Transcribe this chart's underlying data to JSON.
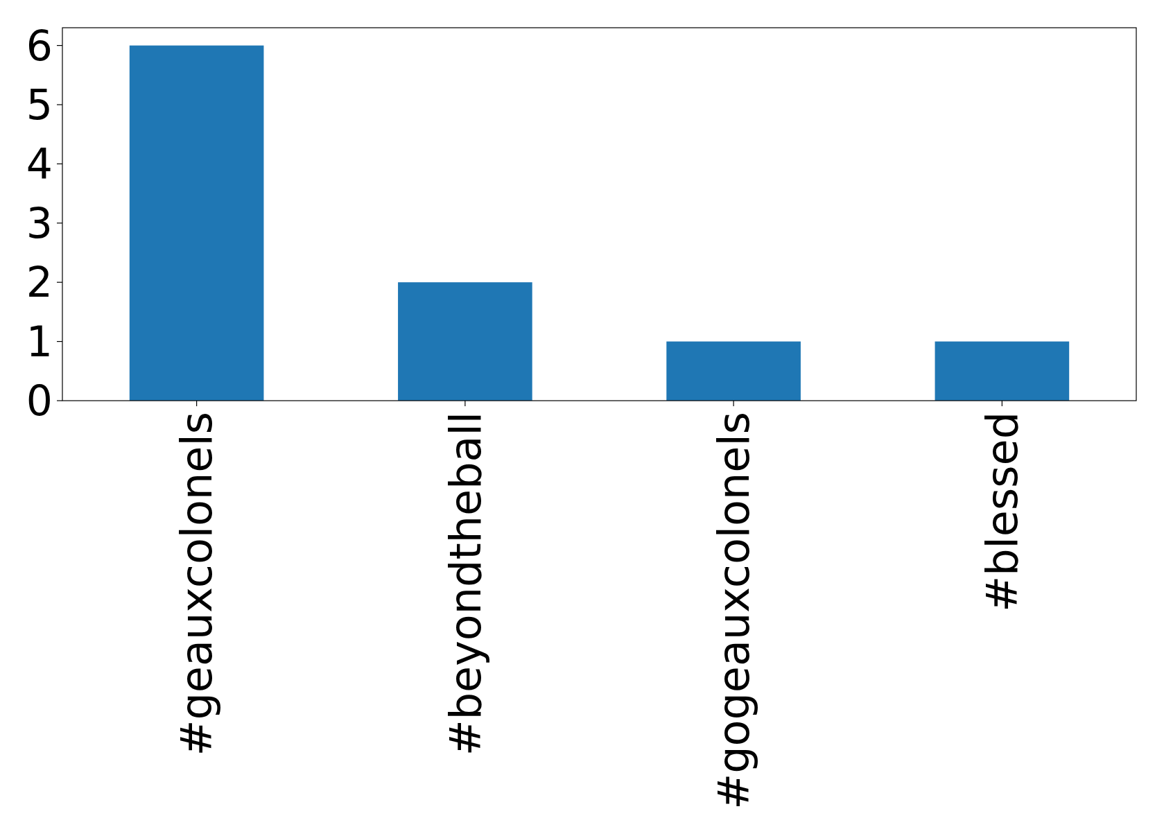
{
  "chart_data": {
    "type": "bar",
    "categories": [
      "#geauxcolonels",
      "#beyondtheball",
      "#gogeauxcolonels",
      "#blessed"
    ],
    "values": [
      6,
      2,
      1,
      1
    ],
    "color": "#1f77b4",
    "ylim": [
      0,
      6.3
    ],
    "yticks": [
      0,
      1,
      2,
      3,
      4,
      5,
      6
    ],
    "grid": false
  }
}
